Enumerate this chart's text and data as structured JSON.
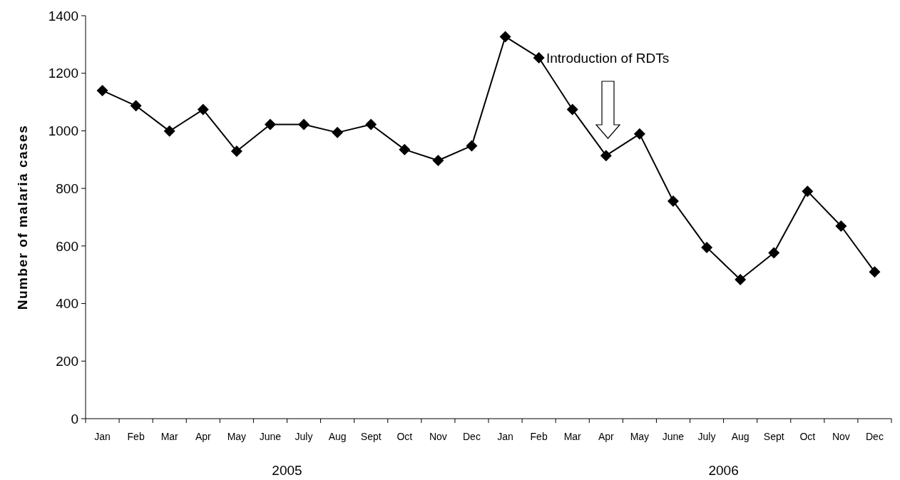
{
  "chart_data": {
    "type": "line",
    "ylabel": "Number of malaria cases",
    "categories": [
      "Jan",
      "Feb",
      "Mar",
      "Apr",
      "May",
      "June",
      "July",
      "Aug",
      "Sept",
      "Oct",
      "Nov",
      "Dec",
      "Jan",
      "Feb",
      "Mar",
      "Apr",
      "May",
      "June",
      "July",
      "Aug",
      "Sept",
      "Oct",
      "Nov",
      "Dec"
    ],
    "series": [
      {
        "color": "#000000",
        "values": [
          1140,
          1087,
          999,
          1074,
          929,
          1022,
          1022,
          994,
          1022,
          935,
          897,
          948,
          1327,
          1254,
          1074,
          914,
          989,
          756,
          595,
          483,
          576,
          790,
          669,
          510
        ]
      }
    ],
    "ylim": [
      0,
      1400
    ],
    "yticks": [
      0,
      200,
      400,
      600,
      800,
      1000,
      1200,
      1400
    ],
    "annotations": [
      "Introduction of RDTs",
      "2005",
      "2006"
    ],
    "marker": "diamond",
    "line_style": "solid"
  }
}
